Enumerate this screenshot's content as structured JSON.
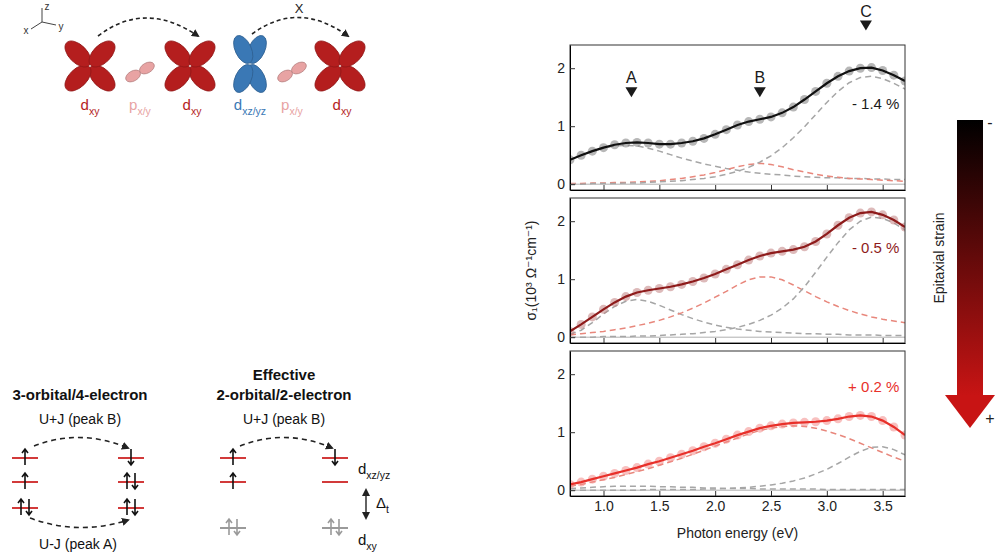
{
  "chart_data": [
    {
      "type": "line",
      "x": [
        0.7,
        0.8,
        0.9,
        1.0,
        1.1,
        1.2,
        1.3,
        1.4,
        1.5,
        1.6,
        1.7,
        1.8,
        1.9,
        2.0,
        2.1,
        2.2,
        2.3,
        2.4,
        2.5,
        2.6,
        2.7,
        2.8,
        2.9,
        3.0,
        3.1,
        3.2,
        3.3,
        3.4,
        3.5,
        3.6,
        3.7
      ],
      "xlim": [
        0.7,
        3.7
      ],
      "xticks": [
        {
          "value": 1,
          "label": "1.0"
        },
        1.5,
        {
          "value": 2,
          "label": "2.0"
        },
        2.5,
        {
          "value": 3,
          "label": "3.0"
        },
        3.5
      ],
      "ylim": [
        -0.1,
        2.4
      ],
      "yticks": [
        0,
        1,
        2
      ],
      "tick_labels": "y",
      "series": [
        {
          "type": "line",
          "line_style": "solid",
          "marker": "circle",
          "color": "#111111",
          "values": [
            0.42,
            0.5,
            0.57,
            0.63,
            0.68,
            0.71,
            0.72,
            0.71,
            0.69,
            0.69,
            0.71,
            0.74,
            0.79,
            0.86,
            0.94,
            1.02,
            1.08,
            1.12,
            1.16,
            1.23,
            1.33,
            1.46,
            1.6,
            1.74,
            1.86,
            1.95,
            2.0,
            2.01,
            1.96,
            1.88,
            1.78
          ]
        },
        {
          "type": "line",
          "line_style": "dashed",
          "color": "#a6a6a6",
          "values": [
            0.42,
            0.5,
            0.57,
            0.62,
            0.66,
            0.67,
            0.66,
            0.62,
            0.57,
            0.51,
            0.45,
            0.4,
            0.35,
            0.31,
            0.27,
            0.24,
            0.21,
            0.19,
            0.17,
            0.16,
            0.14,
            0.13,
            0.12,
            0.11,
            0.11,
            0.1,
            0.1,
            0.09,
            0.09,
            0.08,
            0.08
          ]
        },
        {
          "type": "line",
          "line_style": "dashed",
          "color": "#e8877c",
          "values": [
            0.01,
            0.01,
            0.02,
            0.02,
            0.03,
            0.03,
            0.04,
            0.05,
            0.06,
            0.08,
            0.1,
            0.13,
            0.16,
            0.2,
            0.25,
            0.3,
            0.34,
            0.36,
            0.34,
            0.3,
            0.25,
            0.21,
            0.17,
            0.14,
            0.12,
            0.1,
            0.09,
            0.08,
            0.07,
            0.06,
            0.05
          ]
        },
        {
          "type": "line",
          "line_style": "dashed",
          "color": "#a6a6a6",
          "values": [
            0,
            0,
            0.01,
            0.01,
            0.01,
            0.02,
            0.02,
            0.03,
            0.04,
            0.05,
            0.06,
            0.08,
            0.1,
            0.13,
            0.17,
            0.22,
            0.29,
            0.38,
            0.49,
            0.63,
            0.8,
            0.99,
            1.2,
            1.41,
            1.6,
            1.75,
            1.84,
            1.86,
            1.82,
            1.74,
            1.64
          ]
        }
      ],
      "annotations": [
        {
          "text": "A",
          "x": 1.25,
          "y": 1.5,
          "marker": "triangle"
        },
        {
          "text": "B",
          "x": 2.4,
          "y": 1.5,
          "marker": "triangle"
        },
        {
          "text": "C",
          "x": 3.35,
          "y": 2.65,
          "marker": "triangle"
        },
        {
          "text": "- 1.4 %",
          "x": 3.65,
          "y": 1.3,
          "color": "#1a1a1a"
        }
      ]
    },
    {
      "type": "line",
      "x": [
        0.7,
        0.8,
        0.9,
        1.0,
        1.1,
        1.2,
        1.3,
        1.4,
        1.5,
        1.6,
        1.7,
        1.8,
        1.9,
        2.0,
        2.1,
        2.2,
        2.3,
        2.4,
        2.5,
        2.6,
        2.7,
        2.8,
        2.9,
        3.0,
        3.1,
        3.2,
        3.3,
        3.4,
        3.5,
        3.6,
        3.7
      ],
      "xlim": [
        0.7,
        3.7
      ],
      "xticks": [
        {
          "value": 1,
          "label": "1.0"
        },
        1.5,
        {
          "value": 2,
          "label": "2.0"
        },
        2.5,
        {
          "value": 3,
          "label": "3.0"
        },
        3.5
      ],
      "ylim": [
        -0.1,
        2.4
      ],
      "yticks": [
        0,
        1,
        2
      ],
      "tick_labels": "y",
      "y_label": "σ₁(10³ Ω⁻¹cm⁻¹)",
      "series": [
        {
          "type": "line",
          "line_style": "solid",
          "marker": "circle",
          "color": "#8e1b1b",
          "values": [
            0.1,
            0.22,
            0.35,
            0.48,
            0.6,
            0.7,
            0.77,
            0.81,
            0.84,
            0.87,
            0.91,
            0.96,
            1.02,
            1.09,
            1.17,
            1.25,
            1.33,
            1.4,
            1.45,
            1.48,
            1.51,
            1.56,
            1.65,
            1.78,
            1.93,
            2.06,
            2.14,
            2.16,
            2.11,
            2.02,
            1.9
          ]
        },
        {
          "type": "line",
          "line_style": "dashed",
          "color": "#a6a6a6",
          "values": [
            0.05,
            0.12,
            0.25,
            0.4,
            0.53,
            0.62,
            0.65,
            0.62,
            0.55,
            0.47,
            0.39,
            0.32,
            0.26,
            0.21,
            0.17,
            0.14,
            0.12,
            0.1,
            0.09,
            0.08,
            0.07,
            0.06,
            0.06,
            0.05,
            0.05,
            0.04,
            0.04,
            0.04,
            0.03,
            0.03,
            0.03
          ]
        },
        {
          "type": "line",
          "line_style": "dashed",
          "color": "#e8877c",
          "values": [
            0.04,
            0.06,
            0.08,
            0.1,
            0.13,
            0.16,
            0.2,
            0.24,
            0.29,
            0.35,
            0.42,
            0.5,
            0.59,
            0.69,
            0.79,
            0.9,
            0.99,
            1.04,
            1.04,
            0.99,
            0.9,
            0.8,
            0.7,
            0.61,
            0.53,
            0.46,
            0.4,
            0.35,
            0.31,
            0.28,
            0.25
          ]
        },
        {
          "type": "line",
          "line_style": "dashed",
          "color": "#a6a6a6",
          "values": [
            0,
            0,
            0,
            0.01,
            0.01,
            0.01,
            0.02,
            0.02,
            0.03,
            0.04,
            0.05,
            0.06,
            0.08,
            0.1,
            0.13,
            0.17,
            0.22,
            0.29,
            0.38,
            0.5,
            0.66,
            0.87,
            1.12,
            1.38,
            1.63,
            1.85,
            2.0,
            2.07,
            2.05,
            1.97,
            1.85
          ]
        }
      ],
      "annotations": [
        {
          "text": "- 0.5 %",
          "x": 3.65,
          "y": 1.45,
          "color": "#8e1b1b"
        }
      ]
    },
    {
      "type": "line",
      "x": [
        0.7,
        0.8,
        0.9,
        1.0,
        1.1,
        1.2,
        1.3,
        1.4,
        1.5,
        1.6,
        1.7,
        1.8,
        1.9,
        2.0,
        2.1,
        2.2,
        2.3,
        2.4,
        2.5,
        2.6,
        2.7,
        2.8,
        2.9,
        3.0,
        3.1,
        3.2,
        3.3,
        3.4,
        3.5,
        3.6,
        3.7
      ],
      "xlim": [
        0.7,
        3.7
      ],
      "xticks": [
        {
          "value": 1,
          "label": "1.0"
        },
        1.5,
        {
          "value": 2,
          "label": "2.0"
        },
        2.5,
        {
          "value": 3,
          "label": "3.0"
        },
        3.5
      ],
      "ylim": [
        -0.1,
        2.4
      ],
      "yticks": [
        0,
        1,
        2
      ],
      "x_label": "Photon energy (eV)",
      "series": [
        {
          "type": "line",
          "line_style": "solid",
          "marker": "circle",
          "color": "#e8302a",
          "values": [
            0.1,
            0.14,
            0.19,
            0.24,
            0.29,
            0.34,
            0.39,
            0.45,
            0.5,
            0.56,
            0.62,
            0.68,
            0.75,
            0.81,
            0.88,
            0.95,
            1.01,
            1.07,
            1.11,
            1.14,
            1.16,
            1.17,
            1.18,
            1.2,
            1.23,
            1.27,
            1.29,
            1.27,
            1.2,
            1.09,
            0.95
          ]
        },
        {
          "type": "line",
          "line_style": "dashed",
          "color": "#a6a6a6",
          "values": [
            0.03,
            0.04,
            0.05,
            0.06,
            0.07,
            0.07,
            0.07,
            0.07,
            0.06,
            0.06,
            0.05,
            0.05,
            0.04,
            0.04,
            0.03,
            0.03,
            0.03,
            0.02,
            0.02,
            0.02,
            0.02,
            0.02,
            0.02,
            0.01,
            0.01,
            0.01,
            0.01,
            0.01,
            0.01,
            0.01,
            0.01
          ]
        },
        {
          "type": "line",
          "line_style": "dashed",
          "color": "#e8877c",
          "values": [
            0.07,
            0.1,
            0.14,
            0.18,
            0.22,
            0.27,
            0.32,
            0.37,
            0.43,
            0.49,
            0.55,
            0.62,
            0.69,
            0.76,
            0.83,
            0.9,
            0.97,
            1.03,
            1.07,
            1.1,
            1.11,
            1.1,
            1.07,
            1.02,
            0.96,
            0.89,
            0.81,
            0.73,
            0.65,
            0.57,
            0.5
          ]
        },
        {
          "type": "line",
          "line_style": "dashed",
          "color": "#a6a6a6",
          "values": [
            0,
            0,
            0,
            0,
            0,
            0,
            0,
            0.01,
            0.01,
            0.01,
            0.01,
            0.01,
            0.02,
            0.02,
            0.03,
            0.04,
            0.05,
            0.07,
            0.09,
            0.12,
            0.16,
            0.21,
            0.28,
            0.36,
            0.46,
            0.57,
            0.67,
            0.74,
            0.75,
            0.7,
            0.61
          ]
        }
      ],
      "annotations": [
        {
          "text": "+ 0.2 %",
          "x": 3.65,
          "y": 1.7,
          "color": "#e8302a"
        }
      ]
    }
  ],
  "strain_bar": {
    "label": "Epitaxial strain",
    "top": "-",
    "bottom": "+"
  },
  "diagram": {
    "axis_labels": [
      "z",
      "x",
      "y"
    ],
    "allowed_hop": [
      {
        "symbol": "d",
        "subscript": "xy"
      },
      {
        "symbol": "p",
        "subscript": "x/y"
      },
      {
        "symbol": "d",
        "subscript": "xy"
      }
    ],
    "blocked_hop": {
      "mark": "X",
      "orbitals": [
        {
          "symbol": "d",
          "subscript": "xz/yz"
        },
        {
          "symbol": "p",
          "subscript": "x/y"
        },
        {
          "symbol": "d",
          "subscript": "xy"
        }
      ]
    },
    "three_orbital": {
      "title": "3-orbital/4-electron",
      "upper_transition": "U+J (peak B)",
      "lower_transition": "U-J (peak A)"
    },
    "two_orbital": {
      "title": [
        "Effective",
        "2-orbital/2-electron"
      ],
      "transition": "U+J (peak B)",
      "upper_levels": {
        "symbol": "d",
        "subscript": "xz/yz"
      },
      "lower_levels": {
        "symbol": "d",
        "subscript": "xy"
      },
      "gap": {
        "symbol": "Δ",
        "subscript": "t"
      }
    }
  }
}
